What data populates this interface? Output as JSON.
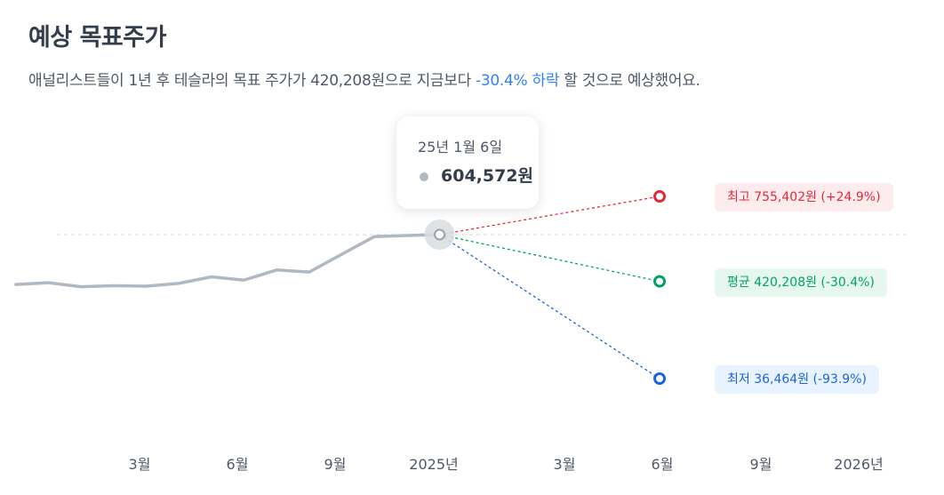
{
  "title": "예상 목표주가",
  "subtitle": {
    "before": "애널리스트들이 1년 후 테슬라의 목표 주가가 420,208원으로 지금보다 ",
    "highlight": "-30.4% 하락",
    "after": " 할 것으로 예상했어요."
  },
  "tooltip": {
    "date": "25년 1월 6일",
    "price": "604,572원"
  },
  "targets": {
    "max_label": "최고 755,402원 (+24.9%)",
    "avg_label": "평균 420,208원 (-30.4%)",
    "min_label": "최저 36,464원 (-93.9%)"
  },
  "colors": {
    "history_line": "#b0b8c1",
    "max": "#e42939",
    "avg": "#02a262",
    "min": "#1b64da",
    "highlight": "#3182f6"
  },
  "chart_data": {
    "type": "line",
    "x_tick_labels": [
      "3월",
      "6월",
      "9월",
      "2025년",
      "3월",
      "6월",
      "9월",
      "2026년"
    ],
    "series": [
      {
        "values": [
          {
            "x": "2024-01-08",
            "y": 408000
          },
          {
            "x": "2024-02-05",
            "y": 415000
          },
          {
            "x": "2024-03-04",
            "y": 399000
          },
          {
            "x": "2024-04-01",
            "y": 403000
          },
          {
            "x": "2024-04-29",
            "y": 401000
          },
          {
            "x": "2024-05-27",
            "y": 412000
          },
          {
            "x": "2024-06-24",
            "y": 438000
          },
          {
            "x": "2024-07-22",
            "y": 425000
          },
          {
            "x": "2024-08-19",
            "y": 465000
          },
          {
            "x": "2024-09-16",
            "y": 457000
          },
          {
            "x": "2024-10-14",
            "y": 527000
          },
          {
            "x": "2024-11-11",
            "y": 597000
          },
          {
            "x": "2024-12-09",
            "y": 601000
          },
          {
            "x": "2025-01-06",
            "y": 604572
          }
        ]
      }
    ],
    "projections": [
      {
        "label": "최고",
        "from": {
          "x": "2025-01-06",
          "y": 604572
        },
        "to": {
          "x": "2025-07-14",
          "y": 755402
        }
      },
      {
        "label": "평균",
        "from": {
          "x": "2025-01-06",
          "y": 604572
        },
        "to": {
          "x": "2025-07-14",
          "y": 420208
        }
      },
      {
        "label": "최저",
        "from": {
          "x": "2025-01-06",
          "y": 604572
        },
        "to": {
          "x": "2025-07-14",
          "y": 36464
        }
      }
    ],
    "reference_line": {
      "y": 604572,
      "style": "dashed"
    },
    "highlight_point": {
      "x": "2025-01-06",
      "y": 604572
    }
  }
}
